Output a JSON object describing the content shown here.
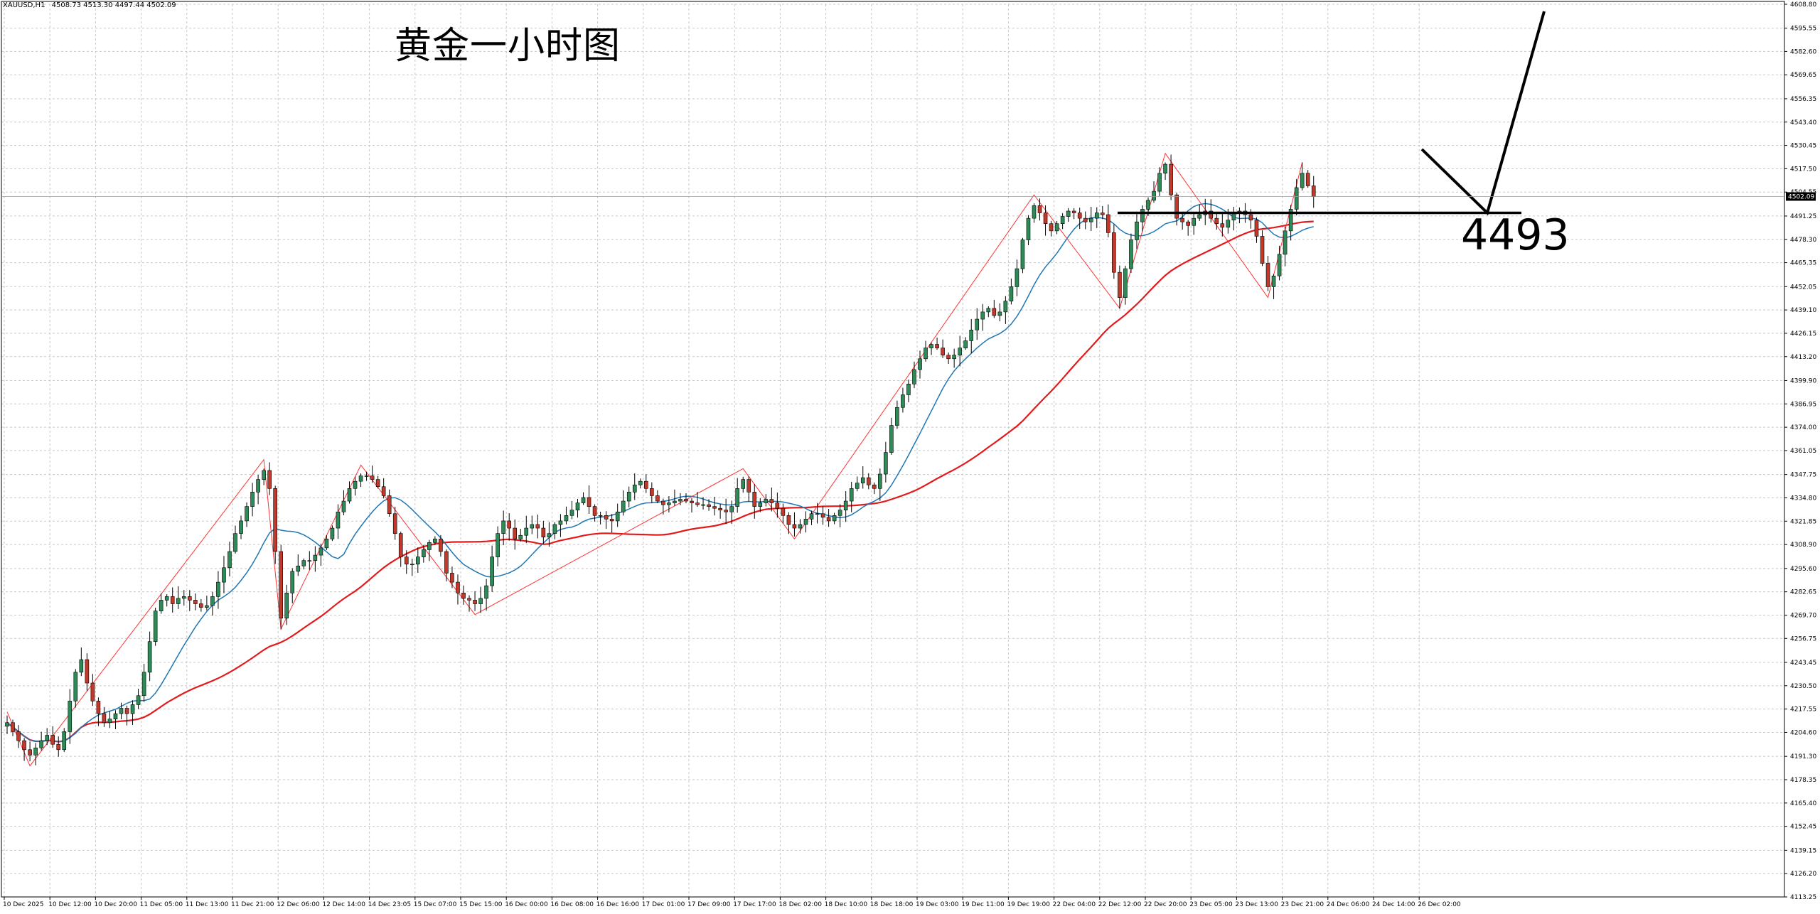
{
  "header": {
    "symbol": "XAUUSD,H1",
    "ohlc": "4508.73 4513.30 4497.44 4502.09"
  },
  "annotation": {
    "title": "黄金一小时图",
    "level_label": "4493"
  },
  "colors": {
    "bull_body": "#2e8b57",
    "bear_body": "#c0392b",
    "ma_fast": "#1f77b4",
    "ma_slow": "#e31a1c",
    "zigzag": "#ff3333",
    "drawing": "#000000",
    "grid": "#c8c8c8"
  },
  "chart_data": {
    "type": "candlestick",
    "title": "黄金一小时图",
    "ylim": [
      4113.25,
      4608.8
    ],
    "y_ticks": [
      "4608.80",
      "4595.55",
      "4582.60",
      "4569.65",
      "4556.35",
      "4543.40",
      "4530.45",
      "4517.50",
      "4504.55",
      "4491.25",
      "4478.30",
      "4465.35",
      "4452.05",
      "4439.10",
      "4426.15",
      "4413.20",
      "4399.90",
      "4386.95",
      "4374.00",
      "4361.05",
      "4347.75",
      "4334.80",
      "4321.85",
      "4308.90",
      "4295.60",
      "4282.65",
      "4269.70",
      "4256.75",
      "4243.45",
      "4230.50",
      "4217.55",
      "4204.60",
      "4191.30",
      "4178.35",
      "4165.40",
      "4152.45",
      "4139.15",
      "4126.20",
      "4113.25"
    ],
    "current_price": "4502.09",
    "x_ticks": [
      "10 Dec 2025",
      "10 Dec 12:00",
      "10 Dec 20:00",
      "11 Dec 05:00",
      "11 Dec 13:00",
      "11 Dec 21:00",
      "12 Dec 06:00",
      "12 Dec 14:00",
      "14 Dec 23:05",
      "15 Dec 07:00",
      "15 Dec 15:00",
      "16 Dec 00:00",
      "16 Dec 08:00",
      "16 Dec 16:00",
      "17 Dec 01:00",
      "17 Dec 09:00",
      "17 Dec 17:00",
      "18 Dec 02:00",
      "18 Dec 10:00",
      "18 Dec 18:00",
      "19 Dec 03:00",
      "19 Dec 11:00",
      "19 Dec 19:00",
      "22 Dec 04:00",
      "22 Dec 12:00",
      "22 Dec 20:00",
      "23 Dec 05:00",
      "23 Dec 13:00",
      "23 Dec 21:00",
      "24 Dec 06:00",
      "24 Dec 14:00",
      "26 Dec 02:00"
    ],
    "bars_per_tick": 8,
    "price_path": [
      4210,
      4205,
      4200,
      4195,
      4192,
      4196,
      4200,
      4203,
      4198,
      4195,
      4205,
      4222,
      4238,
      4245,
      4232,
      4222,
      4215,
      4210,
      4212,
      4215,
      4218,
      4215,
      4220,
      4225,
      4238,
      4255,
      4272,
      4278,
      4280,
      4276,
      4279,
      4280,
      4278,
      4276,
      4274,
      4275,
      4280,
      4288,
      4296,
      4305,
      4315,
      4322,
      4330,
      4338,
      4345,
      4350,
      4340,
      4305,
      4268,
      4282,
      4294,
      4297,
      4300,
      4300,
      4303,
      4307,
      4312,
      4318,
      4327,
      4333,
      4340,
      4344,
      4347,
      4347,
      4345,
      4341,
      4336,
      4326,
      4315,
      4302,
      4298,
      4298,
      4302,
      4306,
      4310,
      4312,
      4305,
      4293,
      4288,
      4282,
      4279,
      4278,
      4276,
      4279,
      4286,
      4302,
      4315,
      4322,
      4318,
      4312,
      4314,
      4318,
      4320,
      4318,
      4313,
      4315,
      4320,
      4322,
      4325,
      4328,
      4332,
      4335,
      4330,
      4325,
      4325,
      4323,
      4322,
      4327,
      4333,
      4338,
      4342,
      4344,
      4340,
      4336,
      4333,
      4331,
      4332,
      4333,
      4334,
      4333,
      4332,
      4331,
      4331,
      4330,
      4329,
      4328,
      4327,
      4330,
      4340,
      4345,
      4338,
      4330,
      4332,
      4334,
      4332,
      4329,
      4325,
      4320,
      4318,
      4320,
      4323,
      4326,
      4326,
      4324,
      4322,
      4325,
      4328,
      4333,
      4340,
      4343,
      4346,
      4342,
      4340,
      4348,
      4360,
      4375,
      4385,
      4392,
      4398,
      4406,
      4412,
      4418,
      4420,
      4418,
      4414,
      4412,
      4414,
      4418,
      4422,
      4428,
      4434,
      4438,
      4440,
      4436,
      4438,
      4444,
      4452,
      4462,
      4478,
      4490,
      4497,
      4493,
      4487,
      4483,
      4487,
      4491,
      4494,
      4493,
      4490,
      4488,
      4490,
      4493,
      4492,
      4482,
      4460,
      4446,
      4462,
      4478,
      4488,
      4495,
      4500,
      4505,
      4515,
      4520,
      4503,
      4490,
      4488,
      4486,
      4490,
      4492,
      4494,
      4490,
      4487,
      4485,
      4489,
      4493,
      4494,
      4492,
      4489,
      4480,
      4465,
      4452,
      4458,
      4470,
      4483,
      4495,
      4507,
      4515,
      4508,
      4502
    ],
    "horizontal_level": 4493,
    "ma_fast_label": "",
    "ma_slow_label": ""
  }
}
